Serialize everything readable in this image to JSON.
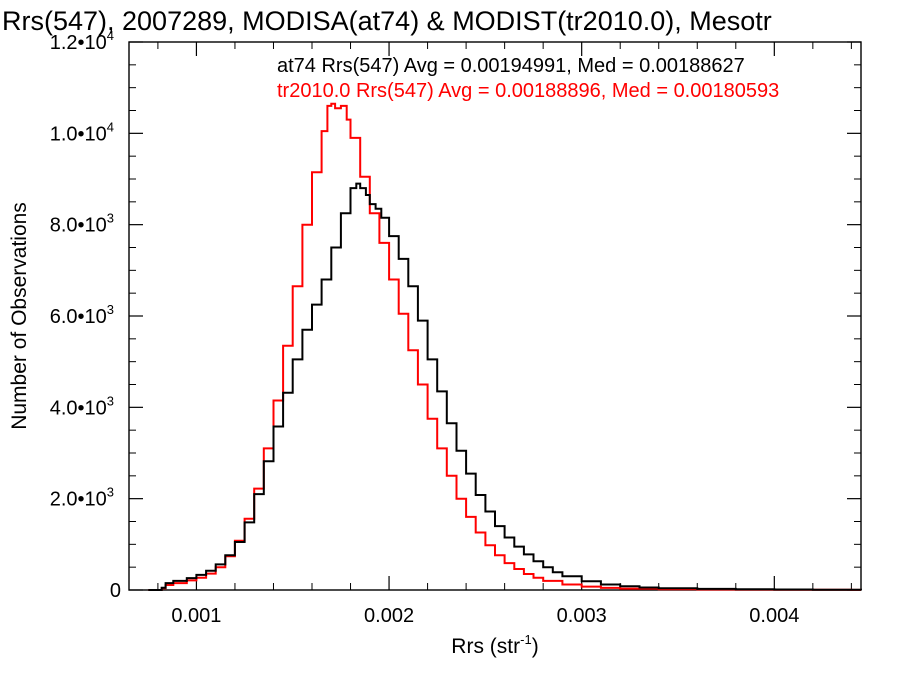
{
  "chart_data": {
    "type": "line",
    "title": "Rrs(547), 2007289, MODISA(at74) & MODIST(tr2010.0), Mesotr",
    "xlabel_main": "Rrs (str",
    "xlabel_sup": "-1",
    "xlabel_close": ")",
    "ylabel": "Number of Observations",
    "xlim": [
      0.00065,
      0.00445
    ],
    "ylim": [
      0,
      12000
    ],
    "x_ticks": [
      {
        "value": 0.001,
        "label": "0.001"
      },
      {
        "value": 0.002,
        "label": "0.002"
      },
      {
        "value": 0.003,
        "label": "0.003"
      },
      {
        "value": 0.004,
        "label": "0.004"
      }
    ],
    "y_ticks": [
      {
        "value": 0,
        "mant": "0",
        "exp": ""
      },
      {
        "value": 2000,
        "mant": "2.0•10",
        "exp": "3"
      },
      {
        "value": 4000,
        "mant": "4.0•10",
        "exp": "3"
      },
      {
        "value": 6000,
        "mant": "6.0•10",
        "exp": "3"
      },
      {
        "value": 8000,
        "mant": "8.0•10",
        "exp": "3"
      },
      {
        "value": 10000,
        "mant": "1.0•10",
        "exp": "4"
      },
      {
        "value": 12000,
        "mant": "1.2•10",
        "exp": "4"
      }
    ],
    "series": [
      {
        "label": "at74 Rrs(547) Avg = 0.00194991, Med = 0.00188627",
        "color": "#000000",
        "points": [
          [
            0.00075,
            0
          ],
          [
            0.0008,
            0
          ],
          [
            0.00082,
            50
          ],
          [
            0.00084,
            150
          ],
          [
            0.00088,
            200
          ],
          [
            0.00095,
            260
          ],
          [
            0.001,
            330
          ],
          [
            0.00105,
            420
          ],
          [
            0.0011,
            560
          ],
          [
            0.00115,
            760
          ],
          [
            0.0012,
            1050
          ],
          [
            0.00125,
            1480
          ],
          [
            0.0013,
            2100
          ],
          [
            0.00135,
            2820
          ],
          [
            0.0014,
            3580
          ],
          [
            0.00145,
            4320
          ],
          [
            0.0015,
            5050
          ],
          [
            0.00155,
            5700
          ],
          [
            0.0016,
            6250
          ],
          [
            0.00165,
            6800
          ],
          [
            0.0017,
            7500
          ],
          [
            0.00175,
            8250
          ],
          [
            0.0018,
            8800
          ],
          [
            0.00183,
            8900
          ],
          [
            0.00185,
            8800
          ],
          [
            0.00188,
            8650
          ],
          [
            0.0019,
            8450
          ],
          [
            0.00193,
            8350
          ],
          [
            0.00196,
            8150
          ],
          [
            0.002,
            7750
          ],
          [
            0.00205,
            7250
          ],
          [
            0.0021,
            6650
          ],
          [
            0.00215,
            5900
          ],
          [
            0.0022,
            5050
          ],
          [
            0.00225,
            4350
          ],
          [
            0.0023,
            3650
          ],
          [
            0.00235,
            3050
          ],
          [
            0.0024,
            2550
          ],
          [
            0.00245,
            2080
          ],
          [
            0.0025,
            1720
          ],
          [
            0.00255,
            1400
          ],
          [
            0.0026,
            1150
          ],
          [
            0.00265,
            950
          ],
          [
            0.0027,
            780
          ],
          [
            0.00275,
            630
          ],
          [
            0.0028,
            500
          ],
          [
            0.00285,
            390
          ],
          [
            0.0029,
            300
          ],
          [
            0.003,
            190
          ],
          [
            0.0031,
            120
          ],
          [
            0.0032,
            80
          ],
          [
            0.0033,
            55
          ],
          [
            0.0034,
            40
          ],
          [
            0.0036,
            25
          ],
          [
            0.0038,
            15
          ],
          [
            0.004,
            10
          ],
          [
            0.0042,
            6
          ],
          [
            0.0044,
            4
          ],
          [
            0.00445,
            3
          ]
        ]
      },
      {
        "label": "tr2010.0 Rrs(547) Avg = 0.00188896, Med = 0.00180593",
        "color": "#ff0000",
        "points": [
          [
            0.00075,
            0
          ],
          [
            0.0008,
            0
          ],
          [
            0.00082,
            40
          ],
          [
            0.00084,
            110
          ],
          [
            0.00088,
            150
          ],
          [
            0.00095,
            210
          ],
          [
            0.001,
            270
          ],
          [
            0.00105,
            360
          ],
          [
            0.0011,
            500
          ],
          [
            0.00115,
            740
          ],
          [
            0.0012,
            1080
          ],
          [
            0.00125,
            1560
          ],
          [
            0.0013,
            2220
          ],
          [
            0.00135,
            3100
          ],
          [
            0.0014,
            4150
          ],
          [
            0.00145,
            5350
          ],
          [
            0.0015,
            6650
          ],
          [
            0.00155,
            8000
          ],
          [
            0.0016,
            9150
          ],
          [
            0.00165,
            10050
          ],
          [
            0.00168,
            10600
          ],
          [
            0.0017,
            10650
          ],
          [
            0.00172,
            10550
          ],
          [
            0.00175,
            10600
          ],
          [
            0.00178,
            10300
          ],
          [
            0.0018,
            9900
          ],
          [
            0.00185,
            9050
          ],
          [
            0.0019,
            8250
          ],
          [
            0.00195,
            7600
          ],
          [
            0.002,
            6800
          ],
          [
            0.00205,
            6050
          ],
          [
            0.0021,
            5250
          ],
          [
            0.00215,
            4500
          ],
          [
            0.0022,
            3750
          ],
          [
            0.00225,
            3100
          ],
          [
            0.0023,
            2500
          ],
          [
            0.00235,
            2000
          ],
          [
            0.0024,
            1600
          ],
          [
            0.00245,
            1260
          ],
          [
            0.0025,
            980
          ],
          [
            0.00255,
            760
          ],
          [
            0.0026,
            590
          ],
          [
            0.00265,
            460
          ],
          [
            0.0027,
            350
          ],
          [
            0.00275,
            270
          ],
          [
            0.0028,
            200
          ],
          [
            0.0029,
            120
          ],
          [
            0.003,
            75
          ],
          [
            0.0031,
            45
          ],
          [
            0.0032,
            30
          ],
          [
            0.0034,
            18
          ],
          [
            0.0036,
            12
          ],
          [
            0.0038,
            8
          ],
          [
            0.004,
            5
          ],
          [
            0.0042,
            4
          ],
          [
            0.0044,
            3
          ],
          [
            0.00445,
            2
          ]
        ]
      }
    ]
  }
}
